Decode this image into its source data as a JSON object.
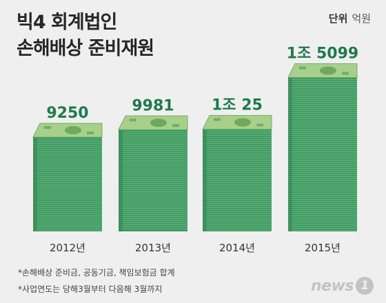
{
  "header": {
    "title_line1": "빅4 회계법인",
    "title_line2": "손해배상 준비재원",
    "unit_label": "단위",
    "unit_value": "억원"
  },
  "chart_data": {
    "type": "bar",
    "categories": [
      "2012년",
      "2013년",
      "2014년",
      "2015년"
    ],
    "values": [
      9250,
      9981,
      10025,
      15099
    ],
    "value_labels": [
      "9250",
      "9981",
      "1조 25",
      "1조 5099"
    ],
    "unit": "억원",
    "bar_color": "#3f9a62",
    "bill_color": "#a8d08a"
  },
  "footnotes": [
    "*손해배상 준비금, 공동기금, 책임보험금 합계",
    "*사업연도는 당해3월부터 다음해 3월까지"
  ],
  "logo": {
    "text": "news",
    "badge": "1"
  }
}
